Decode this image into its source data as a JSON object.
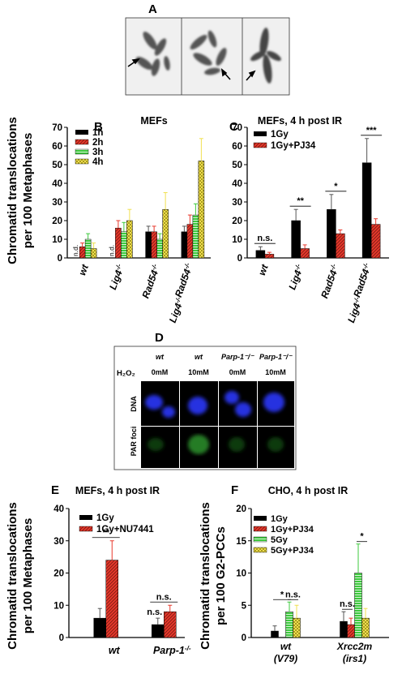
{
  "panels": {
    "A": {
      "letter": "A"
    },
    "B": {
      "letter": "B"
    },
    "C": {
      "letter": "C"
    },
    "D": {
      "letter": "D"
    },
    "E": {
      "letter": "E"
    },
    "F": {
      "letter": "F"
    }
  },
  "shared": {
    "ylabel_top_line1": "Chromatid translocations",
    "ylabel_top_line2": "per 100 Metaphases",
    "ylabel_E_line1": "Chromatid translocations",
    "ylabel_E_line2": "per 100 Metaphases",
    "ylabel_F_line1": "Chromatid translocations",
    "ylabel_F_line2": "per 100 G2-PCCs"
  },
  "micrograph_D": {
    "h2o2_label": "H₂O₂",
    "columns": [
      {
        "geno": "wt",
        "dose": "0mM"
      },
      {
        "geno": "wt",
        "dose": "10mM"
      },
      {
        "geno": "Parp-1⁻/⁻",
        "dose": "0mM"
      },
      {
        "geno": "Parp-1⁻/⁻",
        "dose": "10mM"
      }
    ],
    "rows": [
      "DNA",
      "PAR foci"
    ]
  },
  "chart_data": [
    {
      "id": "B",
      "type": "bar",
      "title": "MEFs",
      "categories": [
        "wt",
        "Lig4⁻/⁻",
        "Rad54⁻/⁻",
        "Lig4⁻/⁻Rad54⁻/⁻"
      ],
      "ylim": [
        0,
        70
      ],
      "yticks": [
        0,
        10,
        20,
        30,
        40,
        50,
        60,
        70
      ],
      "series": [
        {
          "name": "1h",
          "color": "#000000",
          "pattern": "solid",
          "values": [
            0,
            0,
            14,
            14
          ],
          "errors": [
            0,
            0,
            3,
            3
          ]
        },
        {
          "name": "2h",
          "color": "#e8392c",
          "pattern": "diag",
          "values": [
            6,
            16,
            14,
            18
          ],
          "errors": [
            2,
            4,
            3,
            5
          ]
        },
        {
          "name": "3h",
          "color": "#3ec93e",
          "pattern": "horiz",
          "values": [
            10,
            14,
            10,
            23
          ],
          "errors": [
            3,
            5,
            3,
            6
          ]
        },
        {
          "name": "4h",
          "color": "#f0e050",
          "pattern": "check",
          "values": [
            5,
            20,
            26,
            52
          ],
          "errors": [
            3,
            6,
            9,
            12
          ]
        }
      ],
      "annotations": [
        {
          "text": "n.d.",
          "category": 0
        },
        {
          "text": "n.d.",
          "category": 1
        }
      ]
    },
    {
      "id": "C",
      "type": "bar",
      "title": "MEFs, 4 h post IR",
      "categories": [
        "wt",
        "Lig4⁻/⁻",
        "Rad54⁻/⁻",
        "Lig4⁻/⁻Rad54⁻/⁻"
      ],
      "ylim": [
        0,
        70
      ],
      "yticks": [
        0,
        10,
        20,
        30,
        40,
        50,
        60,
        70
      ],
      "series": [
        {
          "name": "1Gy",
          "color": "#000000",
          "pattern": "solid",
          "values": [
            4,
            20,
            26,
            51
          ],
          "errors": [
            2,
            6,
            8,
            13
          ]
        },
        {
          "name": "1Gy+PJ34",
          "color": "#e8392c",
          "pattern": "diag",
          "values": [
            2,
            5,
            13,
            18
          ],
          "errors": [
            1,
            2,
            2,
            3
          ]
        }
      ],
      "significance": [
        "n.s.",
        "**",
        "*",
        "***"
      ]
    },
    {
      "id": "E",
      "type": "bar",
      "title": "MEFs, 4 h post IR",
      "categories": [
        "wt",
        "Parp-1⁻/⁻"
      ],
      "ylim": [
        0,
        40
      ],
      "yticks": [
        0,
        10,
        20,
        30,
        40
      ],
      "series": [
        {
          "name": "1Gy",
          "color": "#000000",
          "pattern": "solid",
          "values": [
            6,
            4
          ],
          "errors": [
            3,
            2
          ]
        },
        {
          "name": "1Gy+NU7441",
          "color": "#e8392c",
          "pattern": "diag",
          "values": [
            24,
            8
          ],
          "errors": [
            6,
            2
          ]
        }
      ],
      "significance": [
        "**",
        "n.s."
      ],
      "bar_labels": [
        "",
        "n.s."
      ]
    },
    {
      "id": "F",
      "type": "bar",
      "title": "CHO, 4 h post IR",
      "categories": [
        "wt (V79)",
        "Xrcc2m (irs1)"
      ],
      "category_lines": [
        [
          "wt",
          "(V79)"
        ],
        [
          "Xrcc2m",
          "(irs1)"
        ]
      ],
      "ylim": [
        0,
        20
      ],
      "yticks": [
        0,
        5,
        10,
        15,
        20
      ],
      "series": [
        {
          "name": "1Gy",
          "color": "#000000",
          "pattern": "solid",
          "values": [
            1,
            2.5
          ],
          "errors": [
            0.8,
            1.5
          ]
        },
        {
          "name": "1Gy+PJ34",
          "color": "#e8392c",
          "pattern": "diag",
          "values": [
            0,
            2
          ],
          "errors": [
            0,
            1
          ]
        },
        {
          "name": "5Gy",
          "color": "#3ec93e",
          "pattern": "horiz",
          "values": [
            4,
            10
          ],
          "errors": [
            1.5,
            4.5
          ]
        },
        {
          "name": "5Gy+PJ34",
          "color": "#f0e050",
          "pattern": "check",
          "values": [
            3,
            3
          ],
          "errors": [
            2,
            1.5
          ]
        }
      ],
      "significance_pairs": [
        {
          "text": "*",
          "category": 0,
          "pair": [
            0,
            2
          ]
        },
        {
          "text": "n.s.",
          "category": 0,
          "pair": [
            2,
            3
          ]
        },
        {
          "text": "n.s.",
          "category": 1,
          "pair": [
            0,
            1
          ]
        },
        {
          "text": "*",
          "category": 1,
          "pair": [
            2,
            3
          ]
        }
      ]
    }
  ]
}
